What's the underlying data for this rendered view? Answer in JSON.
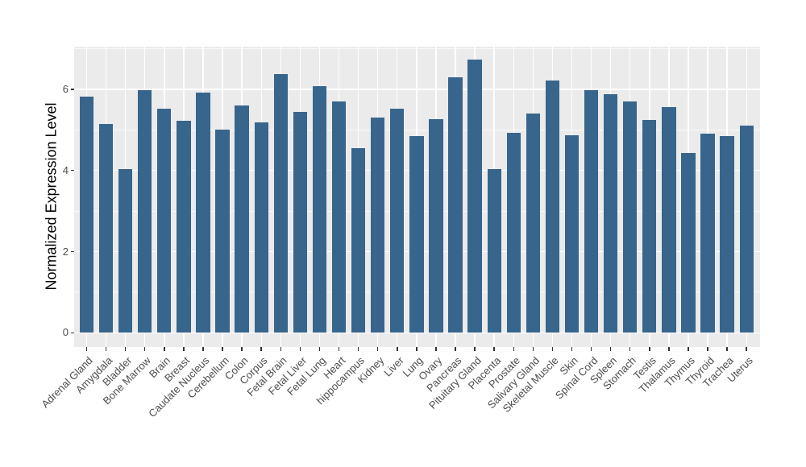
{
  "chart_data": {
    "type": "bar",
    "title": "",
    "xlabel": "",
    "ylabel": "Normalized Expression Level",
    "ylim": [
      -0.35,
      7.05
    ],
    "grid": "on",
    "legend": "none",
    "categories": [
      "Adrenal Gland",
      "Amygdala",
      "Bladder",
      "Bone Marrow",
      "Brain",
      "Breast",
      "Caudate Nucleus",
      "Cerebellum",
      "Colon",
      "Corpus",
      "Fetal Brain",
      "Fetal Liver",
      "Fetal Lung",
      "Heart",
      "hippocampus",
      "Kidney",
      "Liver",
      "Lung",
      "Ovary",
      "Pancreas",
      "Pituitary Gland",
      "Placenta",
      "Prostate",
      "Salivary Gland",
      "Skeletal Muscle",
      "Skin",
      "Spinal Cord",
      "Spleen",
      "Stomach",
      "Testis",
      "Thalamus",
      "Thymus",
      "Thyroid",
      "Trachea",
      "Uterus"
    ],
    "values": [
      5.82,
      5.14,
      4.04,
      5.97,
      5.53,
      5.22,
      5.91,
      5.01,
      5.61,
      5.19,
      6.37,
      5.44,
      6.07,
      5.7,
      4.54,
      5.31,
      5.52,
      4.84,
      5.26,
      6.3,
      6.73,
      4.03,
      4.92,
      5.41,
      6.21,
      4.86,
      5.98,
      5.87,
      5.7,
      5.25,
      5.56,
      4.43,
      4.9,
      4.84,
      5.1
    ],
    "yticks": {
      "major_values": [
        0,
        2,
        4,
        6
      ],
      "major_labels": [
        "0",
        "2",
        "4",
        "6"
      ],
      "minor_values": [
        1,
        3,
        5,
        7
      ]
    },
    "colors": {
      "bar": "#37658C",
      "panel_bg": "#EBEBEB",
      "grid": "#FFFFFF",
      "tick_text": "#4D4D4D",
      "axis_title": "#000000",
      "page_bg": "#FFFFFF"
    }
  }
}
